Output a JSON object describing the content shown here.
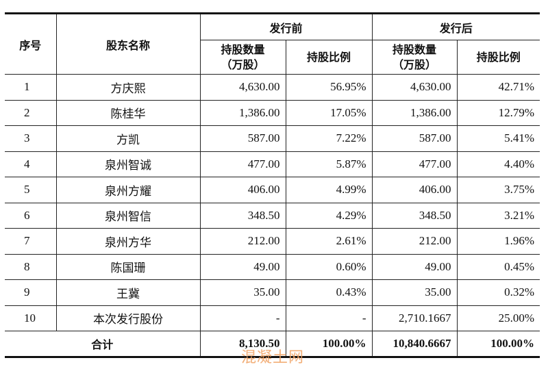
{
  "header": {
    "seq": "序号",
    "name": "股东名称",
    "before": "发行前",
    "after": "发行后",
    "shares": "持股数量",
    "unit": "（万股）",
    "ratio": "持股比例"
  },
  "rows": [
    [
      "1",
      "方庆熙",
      "4,630.00",
      "56.95%",
      "4,630.00",
      "42.71%"
    ],
    [
      "2",
      "陈桂华",
      "1,386.00",
      "17.05%",
      "1,386.00",
      "12.79%"
    ],
    [
      "3",
      "方凯",
      "587.00",
      "7.22%",
      "587.00",
      "5.41%"
    ],
    [
      "4",
      "泉州智诚",
      "477.00",
      "5.87%",
      "477.00",
      "4.40%"
    ],
    [
      "5",
      "泉州方耀",
      "406.00",
      "4.99%",
      "406.00",
      "3.75%"
    ],
    [
      "6",
      "泉州智信",
      "348.50",
      "4.29%",
      "348.50",
      "3.21%"
    ],
    [
      "7",
      "泉州方华",
      "212.00",
      "2.61%",
      "212.00",
      "1.96%"
    ],
    [
      "8",
      "陈国珊",
      "49.00",
      "0.60%",
      "49.00",
      "0.45%"
    ],
    [
      "9",
      "王冀",
      "35.00",
      "0.43%",
      "35.00",
      "0.32%"
    ],
    [
      "10",
      "本次发行股份",
      "-",
      "-",
      "2,710.1667",
      "25.00%"
    ]
  ],
  "total": {
    "label": "合计",
    "before_shares": "8,130.50",
    "before_ratio": "100.00%",
    "after_shares": "10,840.6667",
    "after_ratio": "100.00%"
  },
  "watermark": "混凝土网"
}
